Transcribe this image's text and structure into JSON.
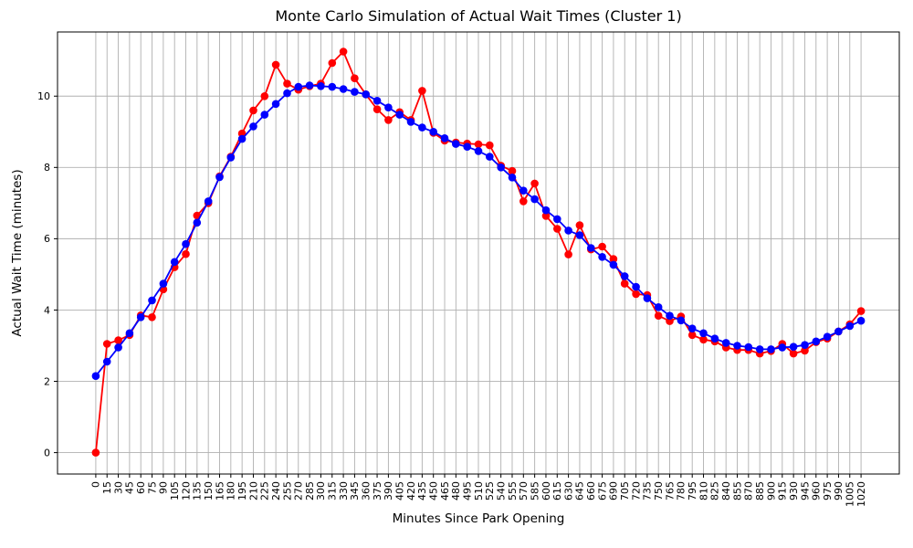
{
  "figure": {
    "background": "#ffffff",
    "axis_color": "#000000"
  },
  "chart_data": {
    "type": "line",
    "title": "Monte Carlo Simulation of Actual Wait Times (Cluster 1)",
    "xlabel": "Minutes Since Park Opening",
    "ylabel": "Actual Wait Time (minutes)",
    "grid": true,
    "grid_color": "#b0b0b0",
    "legend_position": "none",
    "xlim": [
      -51,
      1071
    ],
    "ylim": [
      -0.6,
      11.8
    ],
    "y_ticks": [
      0,
      2,
      4,
      6,
      8,
      10
    ],
    "x": [
      0,
      15,
      30,
      45,
      60,
      75,
      90,
      105,
      120,
      135,
      150,
      165,
      180,
      195,
      210,
      225,
      240,
      255,
      270,
      285,
      300,
      315,
      330,
      345,
      360,
      375,
      390,
      405,
      420,
      435,
      450,
      465,
      480,
      495,
      510,
      525,
      540,
      555,
      570,
      585,
      600,
      615,
      630,
      645,
      660,
      675,
      690,
      705,
      720,
      735,
      750,
      765,
      780,
      795,
      810,
      825,
      840,
      855,
      870,
      885,
      900,
      915,
      930,
      945,
      960,
      975,
      990,
      1005,
      1020
    ],
    "series": [
      {
        "name": "red",
        "color": "#ff0000",
        "marker": "circle",
        "values": [
          0.0,
          3.05,
          3.15,
          3.3,
          3.85,
          3.8,
          4.58,
          5.2,
          5.57,
          6.65,
          7.0,
          7.75,
          8.3,
          8.95,
          9.6,
          10.0,
          10.88,
          10.35,
          10.18,
          10.28,
          10.35,
          10.93,
          11.25,
          10.5,
          10.05,
          9.63,
          9.33,
          9.55,
          9.33,
          10.15,
          8.97,
          8.75,
          8.7,
          8.67,
          8.65,
          8.62,
          8.05,
          7.9,
          7.05,
          7.55,
          6.64,
          6.28,
          5.56,
          6.38,
          5.7,
          5.78,
          5.43,
          4.74,
          4.45,
          4.42,
          3.84,
          3.69,
          3.82,
          3.3,
          3.17,
          3.12,
          2.95,
          2.88,
          2.88,
          2.78,
          2.85,
          3.05,
          2.78,
          2.86,
          3.1,
          3.2,
          3.4,
          3.6,
          3.97
        ]
      },
      {
        "name": "blue",
        "color": "#0000ff",
        "marker": "circle",
        "values": [
          2.15,
          2.55,
          2.95,
          3.35,
          3.8,
          4.27,
          4.74,
          5.35,
          5.85,
          6.45,
          7.05,
          7.73,
          8.28,
          8.8,
          9.15,
          9.48,
          9.78,
          10.08,
          10.26,
          10.3,
          10.28,
          10.26,
          10.2,
          10.12,
          10.05,
          9.87,
          9.68,
          9.48,
          9.28,
          9.12,
          9.0,
          8.82,
          8.66,
          8.58,
          8.46,
          8.3,
          8.0,
          7.72,
          7.35,
          7.11,
          6.8,
          6.55,
          6.23,
          6.1,
          5.74,
          5.49,
          5.27,
          4.95,
          4.65,
          4.33,
          4.08,
          3.84,
          3.71,
          3.48,
          3.35,
          3.2,
          3.08,
          3.0,
          2.96,
          2.9,
          2.9,
          2.95,
          2.97,
          3.02,
          3.12,
          3.25,
          3.4,
          3.55,
          3.7
        ]
      }
    ]
  }
}
